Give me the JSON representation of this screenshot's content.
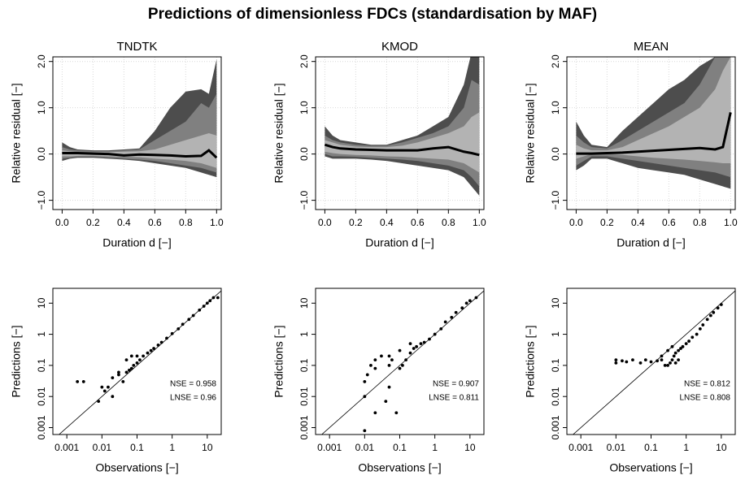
{
  "title": "Predictions of dimensionless FDCs (standardisation by MAF)",
  "chart_data": [
    {
      "type": "band",
      "title": "TNDTK",
      "xlabel": "Duration d [−]",
      "ylabel": "Relative residual [−]",
      "x": [
        0,
        0.05,
        0.1,
        0.2,
        0.3,
        0.4,
        0.5,
        0.6,
        0.7,
        0.8,
        0.9,
        0.95,
        1.0
      ],
      "bands": [
        {
          "color": "#4d4d4d",
          "upper": [
            0.25,
            0.15,
            0.1,
            0.08,
            0.08,
            0.1,
            0.12,
            0.5,
            1.0,
            1.35,
            1.4,
            1.3,
            2.05
          ],
          "lower": [
            -0.15,
            -0.1,
            -0.08,
            -0.08,
            -0.1,
            -0.12,
            -0.15,
            -0.2,
            -0.25,
            -0.3,
            -0.4,
            -0.45,
            -0.5
          ]
        },
        {
          "color": "#808080",
          "upper": [
            0.15,
            0.1,
            0.08,
            0.06,
            0.06,
            0.08,
            0.1,
            0.3,
            0.5,
            0.7,
            1.1,
            1.0,
            1.3
          ],
          "lower": [
            -0.1,
            -0.08,
            -0.06,
            -0.06,
            -0.08,
            -0.1,
            -0.12,
            -0.15,
            -0.2,
            -0.25,
            -0.3,
            -0.35,
            -0.4
          ]
        },
        {
          "color": "#b3b3b3",
          "upper": [
            0.08,
            0.06,
            0.04,
            0.04,
            0.04,
            0.05,
            0.06,
            0.1,
            0.2,
            0.3,
            0.4,
            0.45,
            0.4
          ],
          "lower": [
            -0.05,
            -0.05,
            -0.04,
            -0.04,
            -0.05,
            -0.06,
            -0.07,
            -0.1,
            -0.12,
            -0.15,
            -0.2,
            -0.25,
            -0.3
          ]
        }
      ],
      "series": [
        {
          "color": "#000000",
          "values": [
            0.02,
            0.02,
            0.02,
            0.01,
            0,
            -0.03,
            -0.01,
            -0.02,
            -0.03,
            -0.05,
            -0.04,
            0.08,
            -0.08
          ]
        }
      ],
      "xlim": [
        -0.06,
        1.03
      ],
      "ylim": [
        -1.2,
        2.1
      ],
      "xticks": [
        {
          "value": 0,
          "label": "0.0"
        },
        0.2,
        0.4,
        0.6,
        0.8,
        {
          "value": 1,
          "label": "1.0"
        }
      ],
      "yticks": [
        {
          "value": -1,
          "label": "−1.0"
        },
        {
          "value": 0,
          "label": "0.0"
        },
        {
          "value": 1,
          "label": "1.0"
        },
        {
          "value": 2,
          "label": "2.0"
        }
      ],
      "grid": true
    },
    {
      "type": "band",
      "title": "KMOD",
      "xlabel": "Duration d [−]",
      "ylabel": "Relative residual [−]",
      "x": [
        0,
        0.05,
        0.1,
        0.2,
        0.3,
        0.4,
        0.5,
        0.6,
        0.7,
        0.8,
        0.9,
        0.95,
        1.0
      ],
      "bands": [
        {
          "color": "#4d4d4d",
          "upper": [
            0.6,
            0.4,
            0.3,
            0.25,
            0.2,
            0.2,
            0.3,
            0.4,
            0.6,
            0.8,
            1.5,
            2.2,
            2.1
          ],
          "lower": [
            -0.05,
            -0.1,
            -0.1,
            -0.1,
            -0.12,
            -0.15,
            -0.2,
            -0.25,
            -0.3,
            -0.35,
            -0.5,
            -0.7,
            -0.9
          ]
        },
        {
          "color": "#808080",
          "upper": [
            0.4,
            0.3,
            0.25,
            0.2,
            0.18,
            0.18,
            0.25,
            0.35,
            0.45,
            0.6,
            1.0,
            1.6,
            1.5
          ],
          "lower": [
            0.0,
            -0.05,
            -0.05,
            -0.06,
            -0.08,
            -0.1,
            -0.12,
            -0.15,
            -0.2,
            -0.25,
            -0.35,
            -0.5,
            -0.7
          ]
        },
        {
          "color": "#b3b3b3",
          "upper": [
            0.3,
            0.25,
            0.2,
            0.16,
            0.15,
            0.15,
            0.18,
            0.25,
            0.35,
            0.45,
            0.6,
            0.8,
            0.9
          ],
          "lower": [
            0.05,
            0.02,
            0,
            -0.02,
            -0.03,
            -0.05,
            -0.06,
            -0.08,
            -0.1,
            -0.12,
            -0.2,
            -0.3,
            -0.4
          ]
        }
      ],
      "series": [
        {
          "color": "#000000",
          "values": [
            0.2,
            0.15,
            0.12,
            0.1,
            0.09,
            0.08,
            0.08,
            0.08,
            0.12,
            0.15,
            0.05,
            0.02,
            -0.02
          ]
        }
      ],
      "xlim": [
        -0.06,
        1.03
      ],
      "ylim": [
        -1.2,
        2.1
      ],
      "xticks": [
        {
          "value": 0,
          "label": "0.0"
        },
        0.2,
        0.4,
        0.6,
        0.8,
        {
          "value": 1,
          "label": "1.0"
        }
      ],
      "yticks": [
        {
          "value": -1,
          "label": "−1.0"
        },
        {
          "value": 0,
          "label": "0.0"
        },
        {
          "value": 1,
          "label": "1.0"
        },
        {
          "value": 2,
          "label": "2.0"
        }
      ],
      "grid": true
    },
    {
      "type": "band",
      "title": "MEAN",
      "xlabel": "Duration d [−]",
      "ylabel": "Relative residual [−]",
      "x": [
        0,
        0.05,
        0.1,
        0.2,
        0.3,
        0.4,
        0.5,
        0.6,
        0.7,
        0.8,
        0.9,
        0.95,
        1.0
      ],
      "bands": [
        {
          "color": "#4d4d4d",
          "upper": [
            0.7,
            0.4,
            0.2,
            0.15,
            0.5,
            0.8,
            1.1,
            1.4,
            1.6,
            1.9,
            2.1,
            2.1,
            2.1
          ],
          "lower": [
            -0.35,
            -0.25,
            -0.1,
            -0.1,
            -0.2,
            -0.3,
            -0.35,
            -0.4,
            -0.45,
            -0.55,
            -0.65,
            -0.7,
            -0.75
          ]
        },
        {
          "color": "#808080",
          "upper": [
            0.4,
            0.25,
            0.15,
            0.12,
            0.3,
            0.5,
            0.7,
            0.9,
            1.1,
            1.5,
            2.1,
            2.1,
            2.1
          ],
          "lower": [
            -0.25,
            -0.15,
            -0.05,
            -0.05,
            -0.1,
            -0.15,
            -0.2,
            -0.25,
            -0.3,
            -0.35,
            -0.4,
            -0.45,
            -0.5
          ]
        },
        {
          "color": "#b3b3b3",
          "upper": [
            0.2,
            0.12,
            0.08,
            0.08,
            0.15,
            0.3,
            0.45,
            0.6,
            0.8,
            1.0,
            1.4,
            1.8,
            2.1
          ],
          "lower": [
            -0.1,
            -0.05,
            0,
            0,
            -0.02,
            -0.05,
            -0.08,
            -0.1,
            -0.12,
            -0.15,
            -0.18,
            -0.2,
            -0.2
          ]
        }
      ],
      "series": [
        {
          "color": "#000000",
          "values": [
            0.01,
            0.01,
            0.01,
            0.02,
            0.03,
            0.05,
            0.07,
            0.09,
            0.11,
            0.13,
            0.1,
            0.15,
            0.9
          ]
        }
      ],
      "xlim": [
        -0.06,
        1.03
      ],
      "ylim": [
        -1.2,
        2.1
      ],
      "xticks": [
        {
          "value": 0,
          "label": "0.0"
        },
        0.2,
        0.4,
        0.6,
        0.8,
        {
          "value": 1,
          "label": "1.0"
        }
      ],
      "yticks": [
        {
          "value": -1,
          "label": "−1.0"
        },
        {
          "value": 0,
          "label": "0.0"
        },
        {
          "value": 1,
          "label": "1.0"
        },
        {
          "value": 2,
          "label": "2.0"
        }
      ],
      "grid": true
    },
    {
      "type": "scatter",
      "xlabel": "Observations [−]",
      "ylabel": "Predictions [−]",
      "log": true,
      "identity_line": true,
      "color": "#000000",
      "x": [
        0.002,
        0.003,
        0.008,
        0.01,
        0.012,
        0.015,
        0.02,
        0.03,
        0.04,
        0.05,
        0.06,
        0.07,
        0.08,
        0.1,
        0.12,
        0.15,
        0.2,
        0.25,
        0.3,
        0.4,
        0.5,
        0.7,
        1,
        1.5,
        2,
        3,
        4,
        6,
        8,
        10,
        12,
        15,
        20,
        0.02,
        0.05,
        0.07,
        0.1,
        0.03
      ],
      "y": [
        0.03,
        0.03,
        0.007,
        0.02,
        0.015,
        0.02,
        0.04,
        0.05,
        0.03,
        0.06,
        0.07,
        0.08,
        0.1,
        0.12,
        0.15,
        0.2,
        0.25,
        0.3,
        0.35,
        0.45,
        0.55,
        0.75,
        1.05,
        1.5,
        2.1,
        3,
        4,
        6,
        8,
        10,
        12,
        15,
        15,
        0.01,
        0.15,
        0.2,
        0.2,
        0.06
      ],
      "annotations": [
        "NSE = 0.958",
        "LNSE = 0.96"
      ],
      "xlim": [
        0.0004,
        25
      ],
      "ylim": [
        0.0006,
        30
      ],
      "xticks": [
        0.001,
        0.01,
        0.1,
        1,
        10
      ],
      "yticks": [
        0.001,
        0.01,
        0.1,
        1,
        10
      ]
    },
    {
      "type": "scatter",
      "xlabel": "Observations [−]",
      "ylabel": "Predictions [−]",
      "log": true,
      "identity_line": true,
      "color": "#000000",
      "x": [
        0.01,
        0.01,
        0.01,
        0.012,
        0.015,
        0.02,
        0.02,
        0.03,
        0.04,
        0.05,
        0.05,
        0.06,
        0.08,
        0.1,
        0.12,
        0.15,
        0.2,
        0.25,
        0.3,
        0.4,
        0.5,
        0.7,
        1,
        1.5,
        2,
        3,
        4,
        6,
        8,
        10,
        15,
        0.02,
        0.05,
        0.1,
        0.2
      ],
      "y": [
        0.0008,
        0.01,
        0.03,
        0.05,
        0.1,
        0.003,
        0.15,
        0.2,
        0.007,
        0.02,
        0.1,
        0.15,
        0.003,
        0.08,
        0.1,
        0.15,
        0.25,
        0.35,
        0.4,
        0.5,
        0.55,
        0.7,
        1,
        1.5,
        2.5,
        3.5,
        5,
        7,
        10,
        12,
        15,
        0.08,
        0.2,
        0.3,
        0.5
      ],
      "annotations": [
        "NSE = 0.907",
        "LNSE = 0.811"
      ],
      "xlim": [
        0.0004,
        25
      ],
      "ylim": [
        0.0006,
        30
      ],
      "xticks": [
        0.001,
        0.01,
        0.1,
        1,
        10
      ],
      "yticks": [
        0.001,
        0.01,
        0.1,
        1,
        10
      ]
    },
    {
      "type": "scatter",
      "xlabel": "Observations [−]",
      "ylabel": "Predictions [−]",
      "log": true,
      "identity_line": true,
      "color": "#000000",
      "x": [
        0.01,
        0.01,
        0.015,
        0.02,
        0.03,
        0.05,
        0.07,
        0.1,
        0.15,
        0.2,
        0.25,
        0.3,
        0.35,
        0.4,
        0.45,
        0.5,
        0.6,
        0.7,
        0.8,
        1,
        1.2,
        1.5,
        2,
        2.5,
        3,
        4,
        5,
        6,
        8,
        10,
        0.2,
        0.3,
        0.4,
        0.5,
        0.6
      ],
      "y": [
        0.12,
        0.15,
        0.14,
        0.13,
        0.15,
        0.12,
        0.15,
        0.13,
        0.14,
        0.15,
        0.1,
        0.1,
        0.12,
        0.15,
        0.2,
        0.25,
        0.3,
        0.35,
        0.4,
        0.5,
        0.6,
        0.8,
        1,
        1.5,
        2,
        3,
        4,
        5,
        7,
        9,
        0.2,
        0.3,
        0.4,
        0.12,
        0.15
      ],
      "annotations": [
        "NSE = 0.812",
        "LNSE = 0.808"
      ],
      "xlim": [
        0.0004,
        25
      ],
      "ylim": [
        0.0006,
        30
      ],
      "xticks": [
        0.001,
        0.01,
        0.1,
        1,
        10
      ],
      "yticks": [
        0.001,
        0.01,
        0.1,
        1,
        10
      ]
    }
  ]
}
